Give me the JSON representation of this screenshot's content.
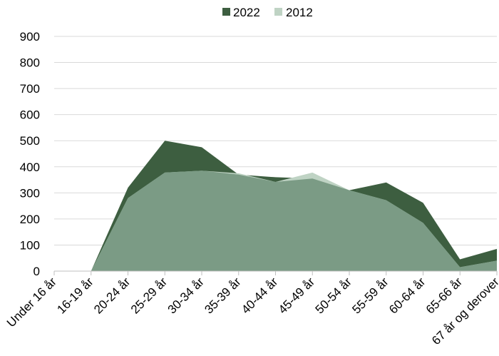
{
  "chart_data": {
    "type": "area",
    "title": "",
    "xlabel": "",
    "ylabel": "",
    "ylim": [
      0,
      900
    ],
    "yticks": [
      0,
      100,
      200,
      300,
      400,
      500,
      600,
      700,
      800,
      900
    ],
    "grid": true,
    "legend_position": "top",
    "categories": [
      "Under 16 år",
      "16-19 år",
      "20-24 år",
      "25-29 år",
      "30-34 år",
      "35-39 år",
      "40-44 år",
      "45-49 år",
      "50-54 år",
      "55-59 år",
      "60-64 år",
      "65-66 år",
      "67 år og derover"
    ],
    "series": [
      {
        "name": "2022",
        "color": "#3d5e40",
        "values": [
          0,
          0,
          320,
          500,
          475,
          370,
          360,
          355,
          310,
          340,
          262,
          45,
          85
        ]
      },
      {
        "name": "2012",
        "color": "#bfd3c4",
        "values": [
          0,
          0,
          280,
          378,
          385,
          375,
          342,
          378,
          310,
          272,
          185,
          15,
          40
        ]
      }
    ],
    "overlap_color": "#7b9b85"
  }
}
